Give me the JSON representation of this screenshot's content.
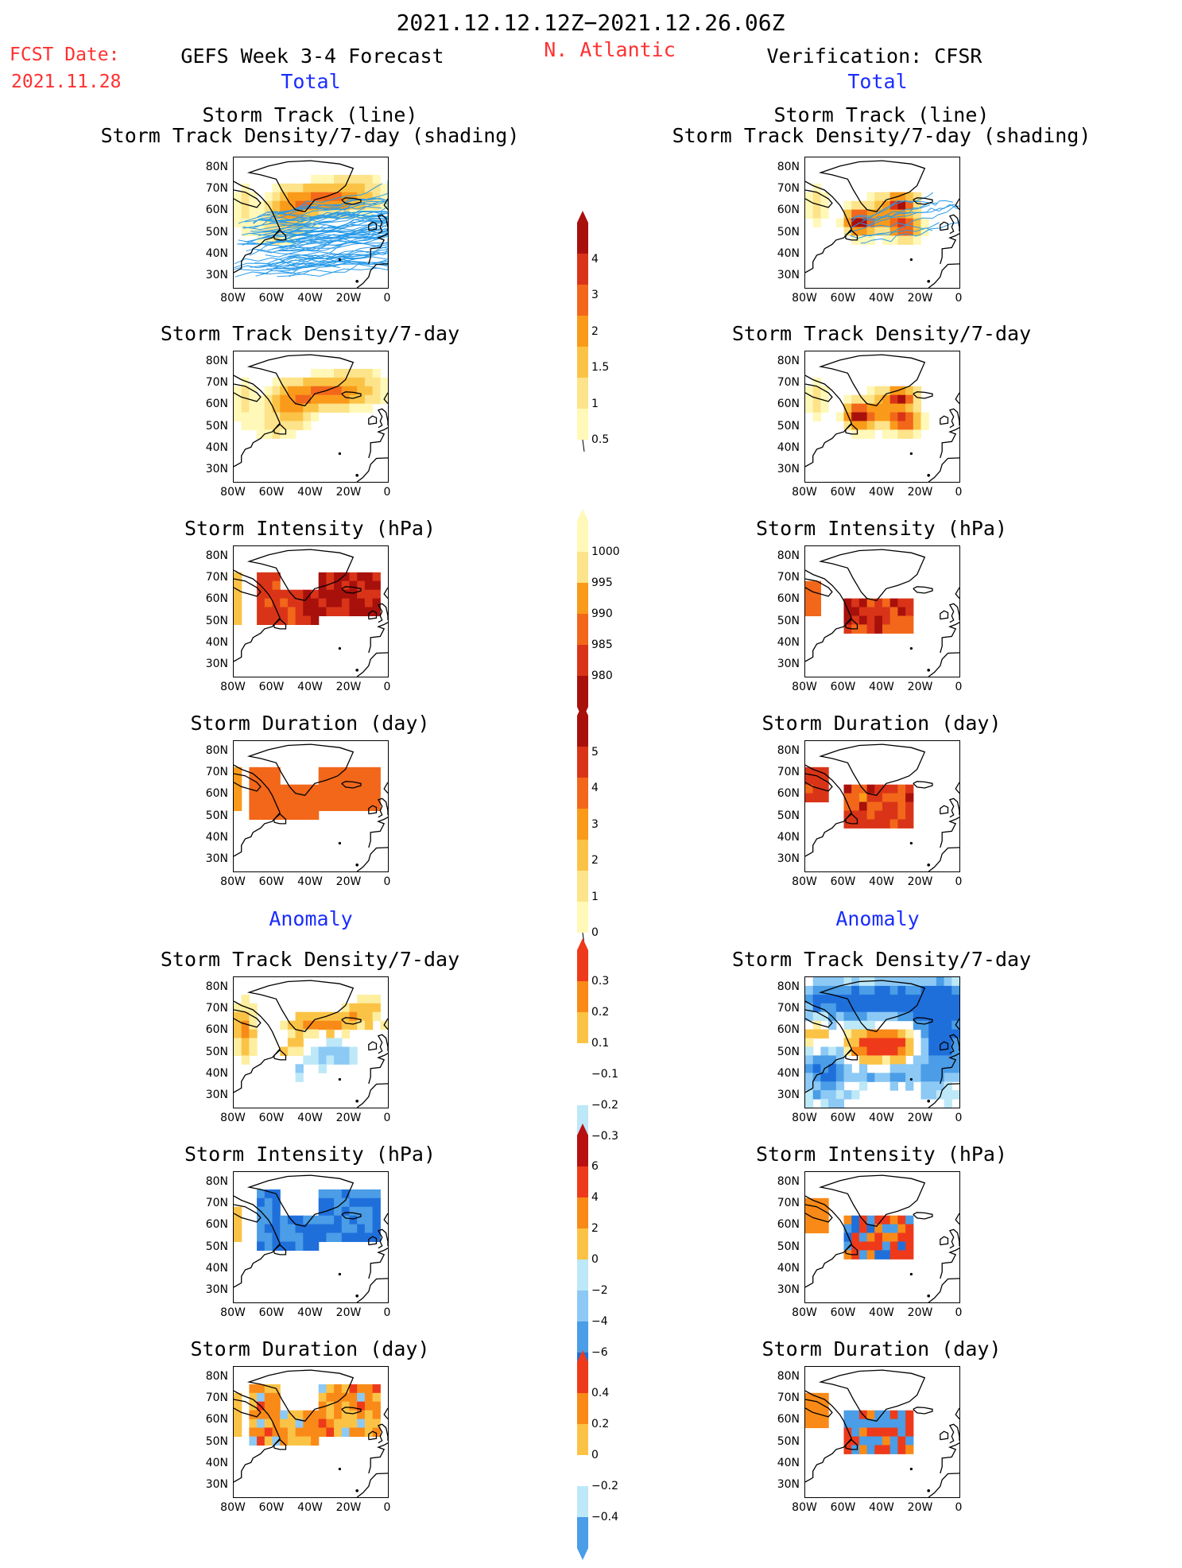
{
  "header": {
    "date_range": "2021.12.12.12Z−2021.12.26.06Z",
    "fcst_label": "FCST Date:",
    "fcst_date": "2021.11.28",
    "forecast_title": "GEFS Week 3-4 Forecast",
    "region": "N. Atlantic",
    "verification_title": "Verification: CFSR",
    "total_left": "Total",
    "total_right": "Total",
    "anomaly_left": "Anomaly",
    "anomaly_right": "Anomaly"
  },
  "panel_titles": {
    "track_line": "Storm Track (line)",
    "track_shading": "Storm Track Density/7-day (shading)",
    "density": "Storm Track Density/7-day",
    "intensity": "Storm Intensity (hPa)",
    "duration": "Storm Duration (day)"
  },
  "axes": {
    "y_ticks": [
      "80N",
      "70N",
      "60N",
      "50N",
      "40N",
      "30N"
    ],
    "x_ticks": [
      "80W",
      "60W",
      "40W",
      "20W",
      "0"
    ]
  },
  "colors": {
    "total_scale": [
      "#fff8b8",
      "#fde38a",
      "#fbc346",
      "#fa9a1a",
      "#f2671a",
      "#d93418",
      "#a8100c",
      "#7a0808"
    ],
    "anom_pos": [
      "#fdeea0",
      "#fbc346",
      "#f98a18",
      "#ee3a1a",
      "#b81010"
    ],
    "anom_neg": [
      "#bde8f8",
      "#8cc9f5",
      "#4a9de6",
      "#1f6fdb",
      "#1450c8"
    ],
    "track_line": "#2a9be8"
  },
  "colorbars": {
    "density_total": [
      "4",
      "3",
      "2",
      "1.5",
      "1",
      "0.5"
    ],
    "intensity_total": [
      "1000",
      "995",
      "990",
      "985",
      "980"
    ],
    "duration_total": [
      "5",
      "4",
      "3",
      "2",
      "1",
      "0"
    ],
    "density_anom": [
      "0.3",
      "0.2",
      "0.1",
      "−0.1",
      "−0.2",
      "−0.3"
    ],
    "intensity_anom": [
      "6",
      "4",
      "2",
      "0",
      "−2",
      "−4",
      "−6"
    ],
    "duration_anom": [
      "0.4",
      "0.2",
      "0",
      "−0.2",
      "−0.4"
    ]
  },
  "chart_data": [
    {
      "type": "heatmap",
      "panel": "forecast-total-track",
      "title": "Storm Track (line) / Storm Track Density/7-day (shading)",
      "region": "N. Atlantic 25N-85N, 80W-0",
      "description_of_field": "track lines spread over full domain; density max ~1.5 near 65N 30W"
    },
    {
      "type": "heatmap",
      "panel": "verification-total-track",
      "title": "Storm Track (line) / Storm Track Density/7-day (shading)",
      "max_density": 3,
      "centers": [
        [
          "55N",
          "50W"
        ],
        [
          "63N",
          "30W"
        ],
        [
          "53N",
          "28W"
        ]
      ]
    },
    {
      "type": "heatmap",
      "panel": "forecast-total-density",
      "title": "Storm Track Density/7-day",
      "max_density": 2,
      "center": [
        "65N",
        "30W"
      ]
    },
    {
      "type": "heatmap",
      "panel": "verification-total-density",
      "title": "Storm Track Density/7-day",
      "max_density": 3,
      "centers": [
        [
          "55N",
          "50W"
        ],
        [
          "63N",
          "30W"
        ],
        [
          "53N",
          "28W"
        ]
      ]
    },
    {
      "type": "heatmap",
      "panel": "forecast-total-intensity",
      "title": "Storm Intensity (hPa)",
      "min_hpa": 980,
      "range": [
        980,
        1000
      ]
    },
    {
      "type": "heatmap",
      "panel": "verification-total-intensity",
      "title": "Storm Intensity (hPa)",
      "min_hpa": 980,
      "range": [
        980,
        1000
      ]
    },
    {
      "type": "heatmap",
      "panel": "forecast-total-duration",
      "title": "Storm Duration (day)",
      "typical_days": 3
    },
    {
      "type": "heatmap",
      "panel": "verification-total-duration",
      "title": "Storm Duration (day)",
      "max_days": 4
    },
    {
      "type": "heatmap",
      "panel": "forecast-anom-density",
      "title": "Storm Track Density/7-day",
      "range": [
        -0.3,
        0.3
      ]
    },
    {
      "type": "heatmap",
      "panel": "verification-anom-density",
      "title": "Storm Track Density/7-day",
      "range": [
        -0.3,
        0.3
      ]
    },
    {
      "type": "heatmap",
      "panel": "forecast-anom-intensity",
      "title": "Storm Intensity (hPa)",
      "range": [
        -6,
        6
      ]
    },
    {
      "type": "heatmap",
      "panel": "verification-anom-intensity",
      "title": "Storm Intensity (hPa)",
      "range": [
        -6,
        6
      ]
    },
    {
      "type": "heatmap",
      "panel": "forecast-anom-duration",
      "title": "Storm Duration (day)",
      "range": [
        -0.4,
        0.4
      ]
    },
    {
      "type": "heatmap",
      "panel": "verification-anom-duration",
      "title": "Storm Duration (day)",
      "range": [
        -0.4,
        0.4
      ]
    }
  ]
}
